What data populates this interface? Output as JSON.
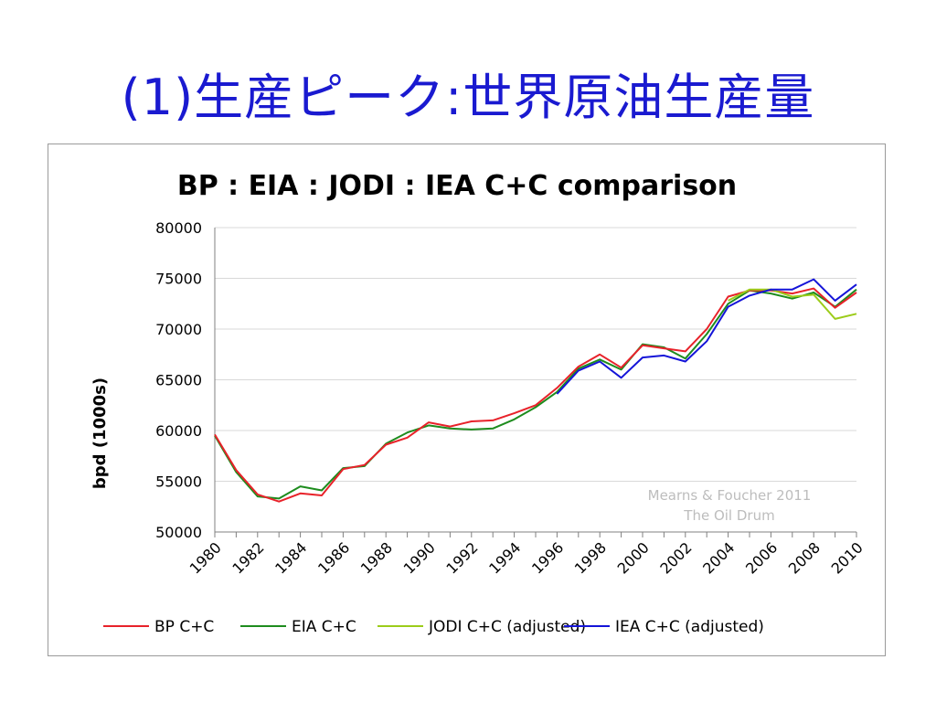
{
  "slide": {
    "title": "(1)生産ピーク:世界原油生産量"
  },
  "colors": {
    "bp": "#e8222a",
    "eia": "#1e8c1e",
    "jodi": "#9ccc1a",
    "iea": "#1414d8",
    "grid": "#d9d9d9",
    "axis": "#808080",
    "watermark": "#bdbdbd"
  },
  "chart_data": {
    "type": "line",
    "title": "BP : EIA : JODI : IEA C+C comparison",
    "xlabel": "",
    "ylabel": "bpd (1000s)",
    "ylim": [
      50000,
      80000
    ],
    "yticks": [
      "50000",
      "55000",
      "60000",
      "65000",
      "70000",
      "75000",
      "80000"
    ],
    "xlim": [
      1980,
      2010
    ],
    "xticks": [
      "1980",
      "1982",
      "1984",
      "1986",
      "1988",
      "1990",
      "1992",
      "1994",
      "1996",
      "1998",
      "2000",
      "2002",
      "2004",
      "2006",
      "2008",
      "2010"
    ],
    "grid": "horizontal",
    "legend": "bottom",
    "annotation": [
      "Mearns & Foucher 2011",
      "The Oil Drum"
    ],
    "series": [
      {
        "name": "BP C+C",
        "x": [
          1980,
          1981,
          1982,
          1983,
          1984,
          1985,
          1986,
          1987,
          1988,
          1989,
          1990,
          1991,
          1992,
          1993,
          1994,
          1995,
          1996,
          1997,
          1998,
          1999,
          2000,
          2001,
          2002,
          2003,
          2004,
          2005,
          2006,
          2007,
          2008,
          2009,
          2010
        ],
        "y": [
          59600,
          56100,
          53700,
          53000,
          53800,
          53600,
          56200,
          56600,
          58600,
          59300,
          60800,
          60400,
          60900,
          61000,
          61700,
          62500,
          64200,
          66300,
          67500,
          66200,
          68400,
          68100,
          67800,
          70000,
          73200,
          73800,
          73800,
          73500,
          74000,
          72100,
          73600
        ]
      },
      {
        "name": "EIA C+C",
        "x": [
          1980,
          1981,
          1982,
          1983,
          1984,
          1985,
          1986,
          1987,
          1988,
          1989,
          1990,
          1991,
          1992,
          1993,
          1994,
          1995,
          1996,
          1997,
          1998,
          1999,
          2000,
          2001,
          2002,
          2003,
          2004,
          2005,
          2006,
          2007,
          2008,
          2009,
          2010
        ],
        "y": [
          59500,
          55900,
          53500,
          53300,
          54500,
          54100,
          56300,
          56500,
          58700,
          59800,
          60500,
          60200,
          60100,
          60200,
          61100,
          62300,
          63800,
          66100,
          67000,
          66000,
          68500,
          68200,
          67100,
          69500,
          72500,
          73800,
          73500,
          73000,
          73600,
          72200,
          73900
        ]
      },
      {
        "name": "JODI C+C (adjusted)",
        "x": [
          2004,
          2005,
          2006,
          2007,
          2008,
          2009,
          2010
        ],
        "y": [
          72800,
          73900,
          73900,
          73200,
          73400,
          71000,
          71500
        ]
      },
      {
        "name": "IEA C+C (adjusted)",
        "x": [
          1996,
          1997,
          1998,
          1999,
          2000,
          2001,
          2002,
          2003,
          2004,
          2005,
          2006,
          2007,
          2008,
          2009,
          2010
        ],
        "y": [
          63600,
          65900,
          66800,
          65200,
          67200,
          67400,
          66800,
          68800,
          72200,
          73300,
          73900,
          73900,
          74900,
          72800,
          74400
        ]
      }
    ]
  }
}
